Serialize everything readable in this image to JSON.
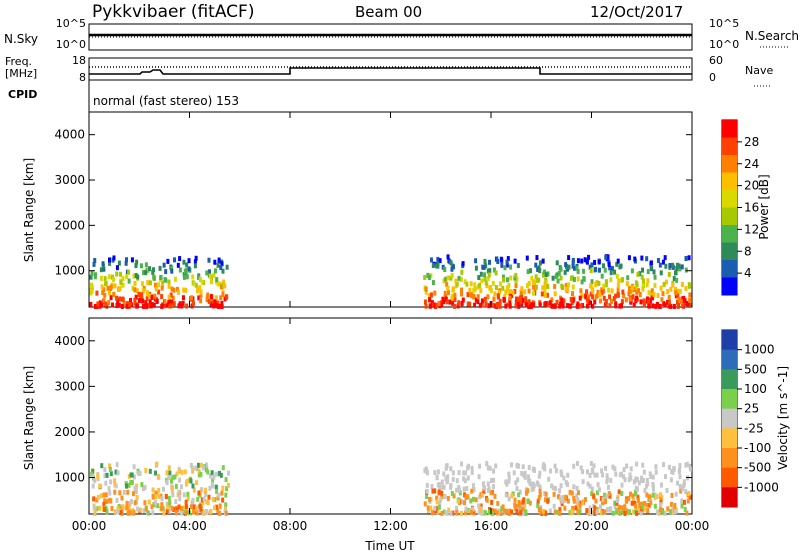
{
  "header": {
    "radar": "Pykkvibaer (fitACF)",
    "beam": "Beam 00",
    "date": "12/Oct/2017"
  },
  "top_panel": {
    "left_label": "N.Sky",
    "left_ticks": [
      "10^5",
      "10^0"
    ],
    "right_ticks": [
      "10^5",
      "10^0"
    ],
    "right_label": "N.Search"
  },
  "freq_panel": {
    "left_label_line1": "Freq.",
    "left_label_line2": "[MHz]",
    "left_ticks": [
      "18",
      "8"
    ],
    "right_ticks": [
      "60",
      "0"
    ],
    "right_label": "Nave",
    "cpid_label": "CPID",
    "mode_text": "normal (fast stereo) 153"
  },
  "chart_data": [
    {
      "type": "heatmap",
      "title": "",
      "ylabel": "Slant Range [km]",
      "xlabel": "",
      "x_ticks": [
        "00:00",
        "04:00",
        "08:00",
        "12:00",
        "16:00",
        "20:00",
        "00:00"
      ],
      "y_ticks": [
        1000,
        2000,
        3000,
        4000
      ],
      "ylim": [
        200,
        4500
      ],
      "colorbar": {
        "label": "Power [dB]",
        "ticks": [
          "28",
          "24",
          "20",
          "16",
          "12",
          "8",
          "4"
        ],
        "colors": [
          "#ff0000",
          "#ff4000",
          "#ff7f00",
          "#ffbf00",
          "#d9d900",
          "#a8c800",
          "#4cb34c",
          "#2e8b57",
          "#1a5cb0",
          "#0000ff"
        ]
      },
      "echo_regions": [
        {
          "t_start": 0.0,
          "t_end": 5.5,
          "range_min": 200,
          "range_max": 1300,
          "level": "high"
        },
        {
          "t_start": 13.3,
          "t_end": 23.9,
          "range_min": 200,
          "range_max": 1300,
          "level": "high"
        }
      ]
    },
    {
      "type": "heatmap",
      "title": "",
      "ylabel": "Slant Range [km]",
      "xlabel": "Time UT",
      "x_ticks": [
        "00:00",
        "04:00",
        "08:00",
        "12:00",
        "16:00",
        "20:00",
        "00:00"
      ],
      "y_ticks": [
        1000,
        2000,
        3000,
        4000
      ],
      "ylim": [
        200,
        4500
      ],
      "colorbar": {
        "label": "Velocity [m s^-1]",
        "ticks": [
          "1000",
          "500",
          "100",
          "25",
          "-25",
          "-100",
          "-500",
          "-1000"
        ],
        "colors": [
          "#1f3fa8",
          "#2e6bb8",
          "#3a9a5a",
          "#7ad04a",
          "#c8c8c8",
          "#ffc040",
          "#ff9020",
          "#ff5a00",
          "#e00000"
        ]
      }
    }
  ]
}
